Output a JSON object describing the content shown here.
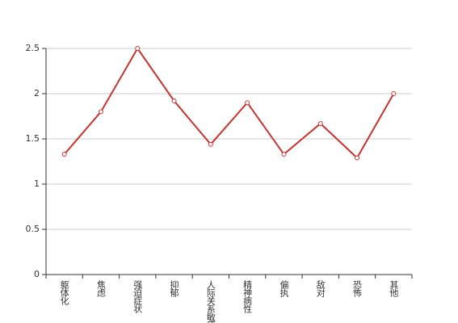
{
  "chart_data": {
    "type": "line",
    "categories": [
      "躯体化",
      "焦虑",
      "强迫症状",
      "抑郁",
      "人际关系敏感",
      "精神病性",
      "偏执",
      "敌对",
      "恐怖",
      "其他"
    ],
    "values": [
      1.33,
      1.8,
      2.5,
      1.92,
      1.44,
      1.9,
      1.33,
      1.67,
      1.29,
      2.0
    ],
    "color": "#c23531",
    "ylim": [
      0,
      2.5
    ],
    "yticks": [
      0,
      0.5,
      1,
      1.5,
      2,
      2.5
    ],
    "grid": true
  }
}
